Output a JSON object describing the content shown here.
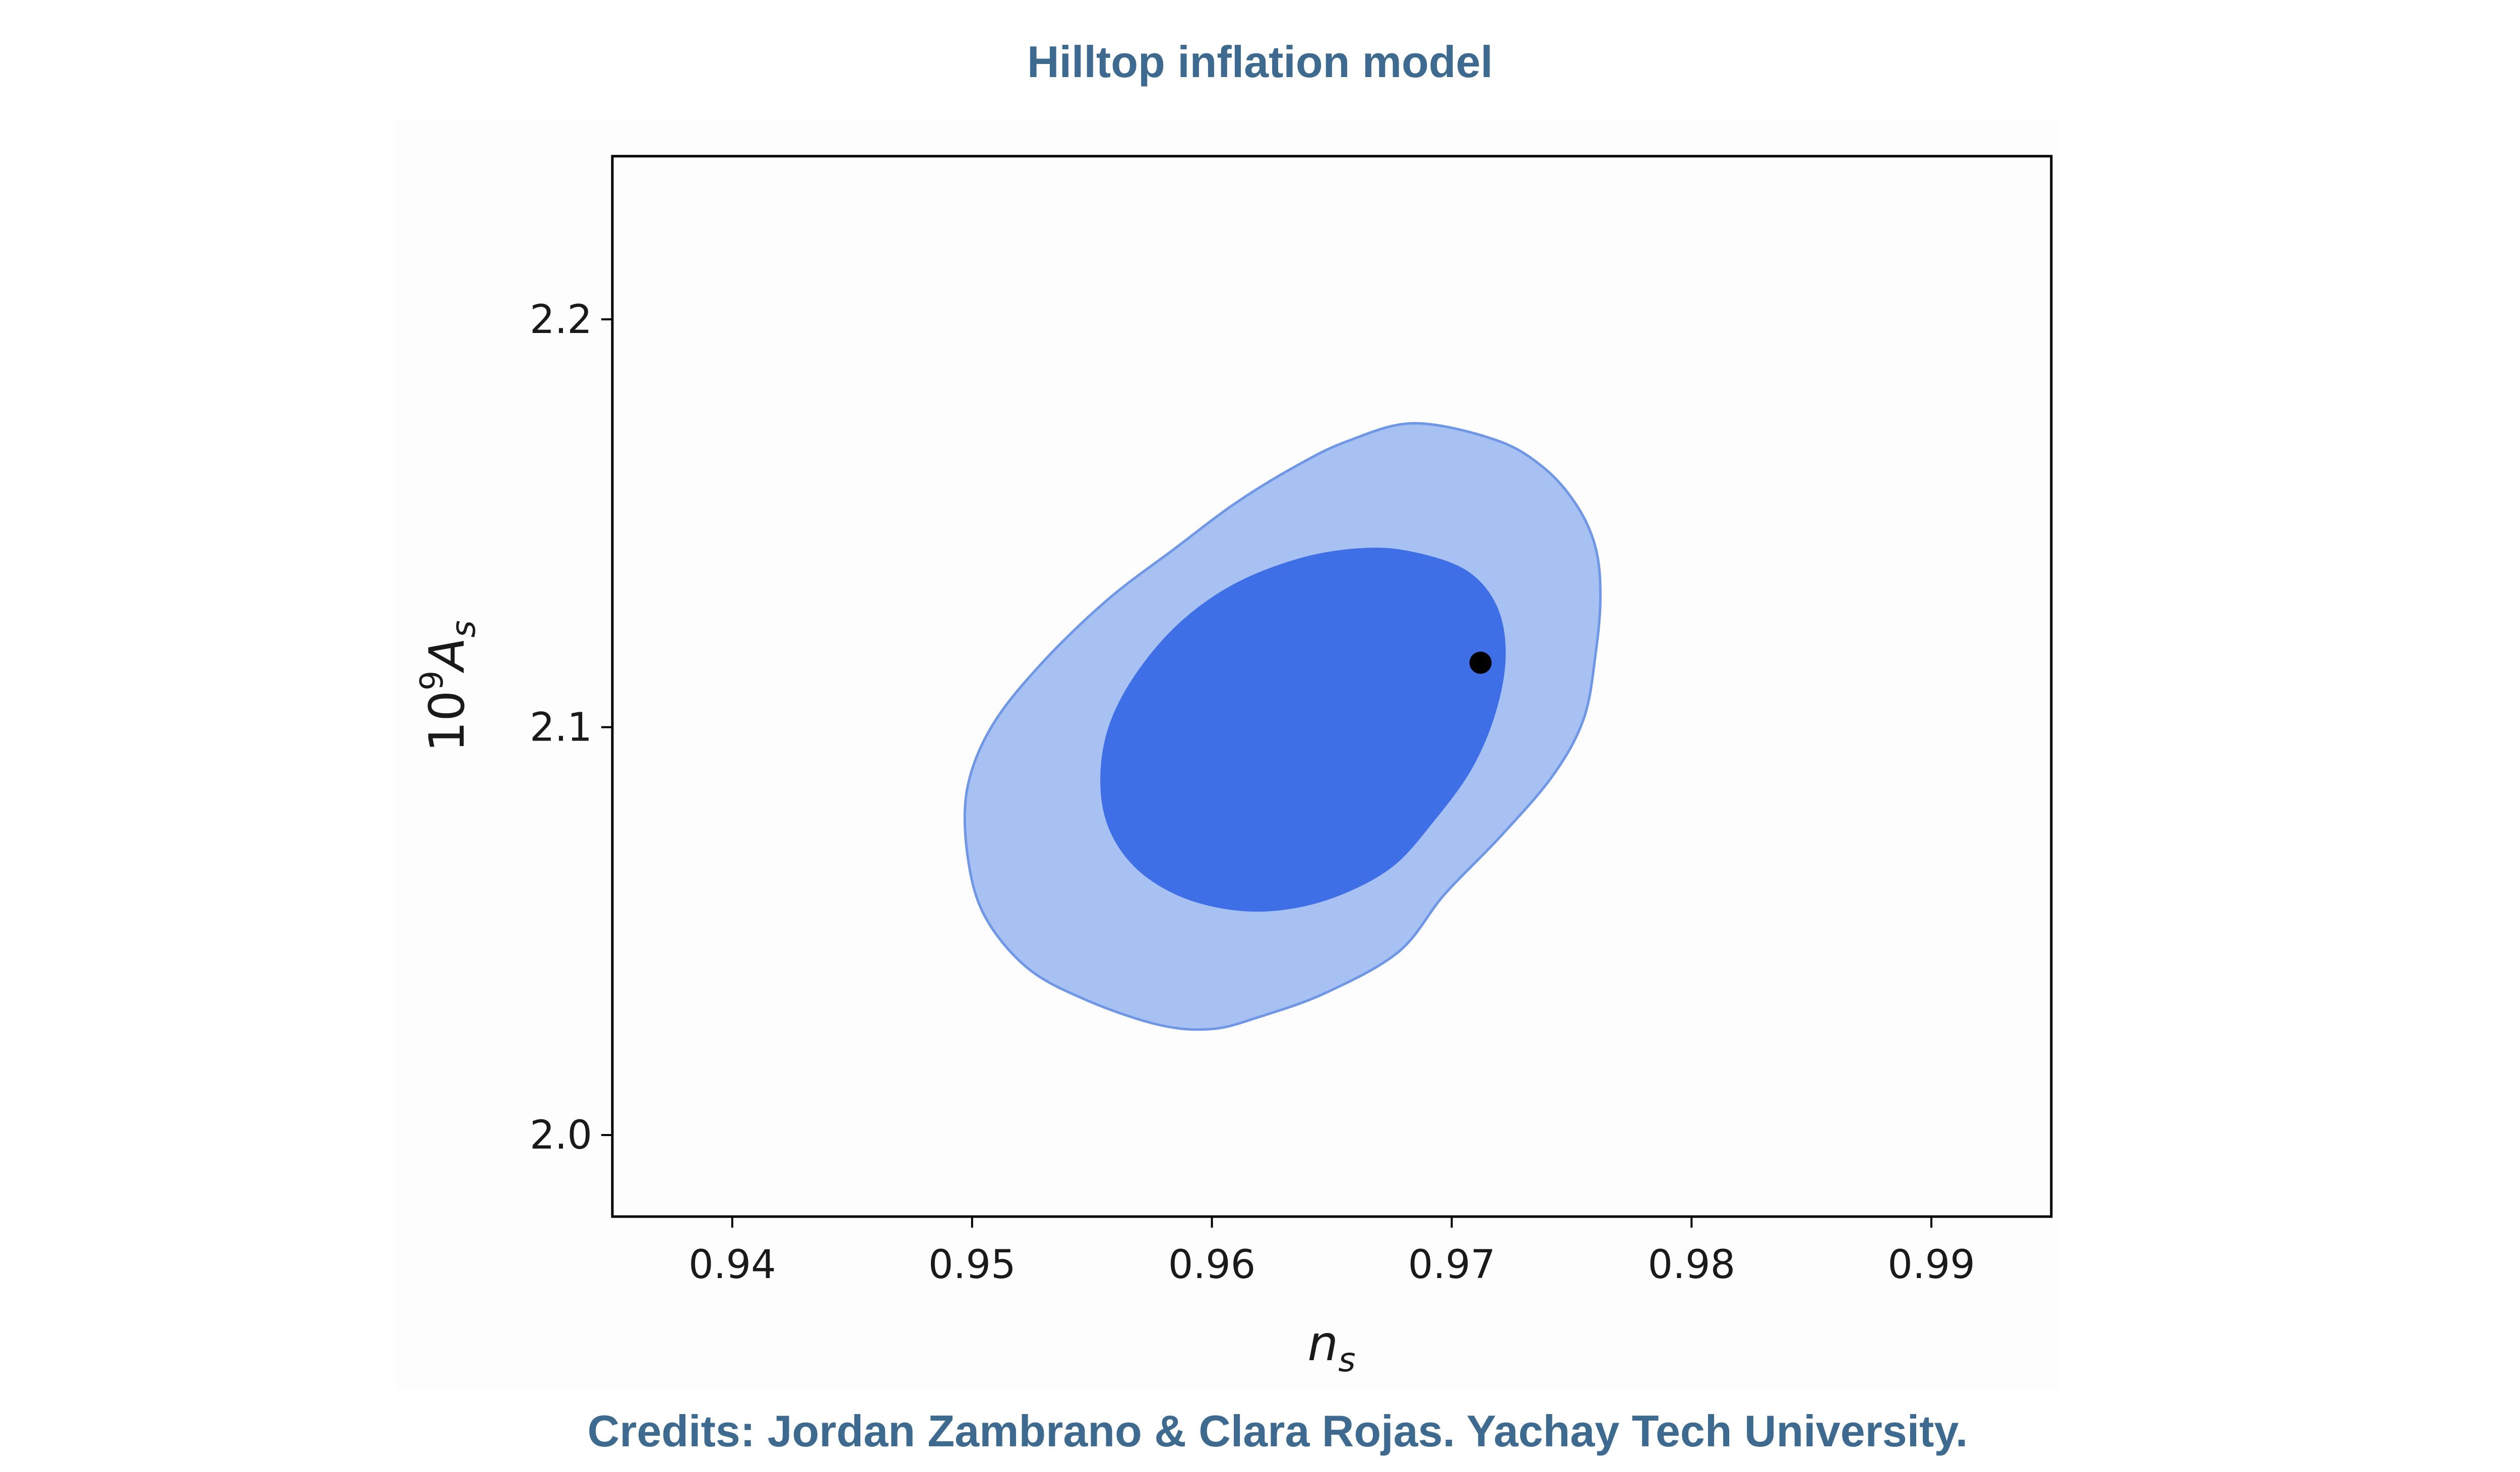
{
  "header": {
    "title": "Hilltop inflation model"
  },
  "footer": {
    "credits": "Credits: Jordan Zambrano & Clara Rojas. Yachay Tech University."
  },
  "chart_data": {
    "type": "contour",
    "title": "Hilltop inflation model",
    "xlabel": "n_s",
    "ylabel": "10^9 A_s",
    "xlim": [
      0.935,
      0.995
    ],
    "ylim": [
      1.98,
      2.24
    ],
    "xticks": [
      0.94,
      0.95,
      0.96,
      0.97,
      0.98,
      0.99
    ],
    "xtick_labels": [
      "0.94",
      "0.95",
      "0.96",
      "0.97",
      "0.98",
      "0.99"
    ],
    "yticks": [
      2.0,
      2.1,
      2.2
    ],
    "ytick_labels": [
      "2.0",
      "2.1",
      "2.2"
    ],
    "grid": false,
    "contours": [
      {
        "level": "outer",
        "color": "#a6c1f2",
        "edge_color": "#6f97e6",
        "points": [
          [
            0.9684,
            2.1745
          ],
          [
            0.9718,
            2.1705
          ],
          [
            0.9738,
            2.1638
          ],
          [
            0.9752,
            2.1545
          ],
          [
            0.976,
            2.144
          ],
          [
            0.9762,
            2.132
          ],
          [
            0.976,
            2.118
          ],
          [
            0.9755,
            2.102
          ],
          [
            0.9742,
            2.088
          ],
          [
            0.972,
            2.073
          ],
          [
            0.9697,
            2.059
          ],
          [
            0.9678,
            2.045
          ],
          [
            0.9648,
            2.035
          ],
          [
            0.962,
            2.029
          ],
          [
            0.96,
            2.026
          ],
          [
            0.9578,
            2.027
          ],
          [
            0.9548,
            2.033
          ],
          [
            0.9523,
            2.041
          ],
          [
            0.9505,
            2.054
          ],
          [
            0.9498,
            2.069
          ],
          [
            0.9498,
            2.085
          ],
          [
            0.9508,
            2.1
          ],
          [
            0.9528,
            2.115
          ],
          [
            0.9556,
            2.131
          ],
          [
            0.9585,
            2.144
          ],
          [
            0.961,
            2.155
          ],
          [
            0.9635,
            2.164
          ],
          [
            0.9656,
            2.17
          ]
        ]
      },
      {
        "level": "inner",
        "color": "#3f6fe6",
        "edge_color": "#3f6fe6",
        "points": [
          [
            0.9681,
            2.143
          ],
          [
            0.9705,
            2.1385
          ],
          [
            0.9718,
            2.13
          ],
          [
            0.9722,
            2.118
          ],
          [
            0.9718,
            2.104
          ],
          [
            0.9708,
            2.09
          ],
          [
            0.9692,
            2.077
          ],
          [
            0.9675,
            2.066
          ],
          [
            0.9653,
            2.059
          ],
          [
            0.963,
            2.0555
          ],
          [
            0.9608,
            2.0555
          ],
          [
            0.9586,
            2.059
          ],
          [
            0.9568,
            2.066
          ],
          [
            0.9557,
            2.076
          ],
          [
            0.9554,
            2.088
          ],
          [
            0.9558,
            2.101
          ],
          [
            0.957,
            2.114
          ],
          [
            0.9588,
            2.126
          ],
          [
            0.961,
            2.135
          ],
          [
            0.9636,
            2.141
          ],
          [
            0.966,
            2.1435
          ]
        ]
      }
    ],
    "points": [
      {
        "x": 0.9712,
        "y": 2.1158,
        "color": "#000000"
      }
    ]
  }
}
